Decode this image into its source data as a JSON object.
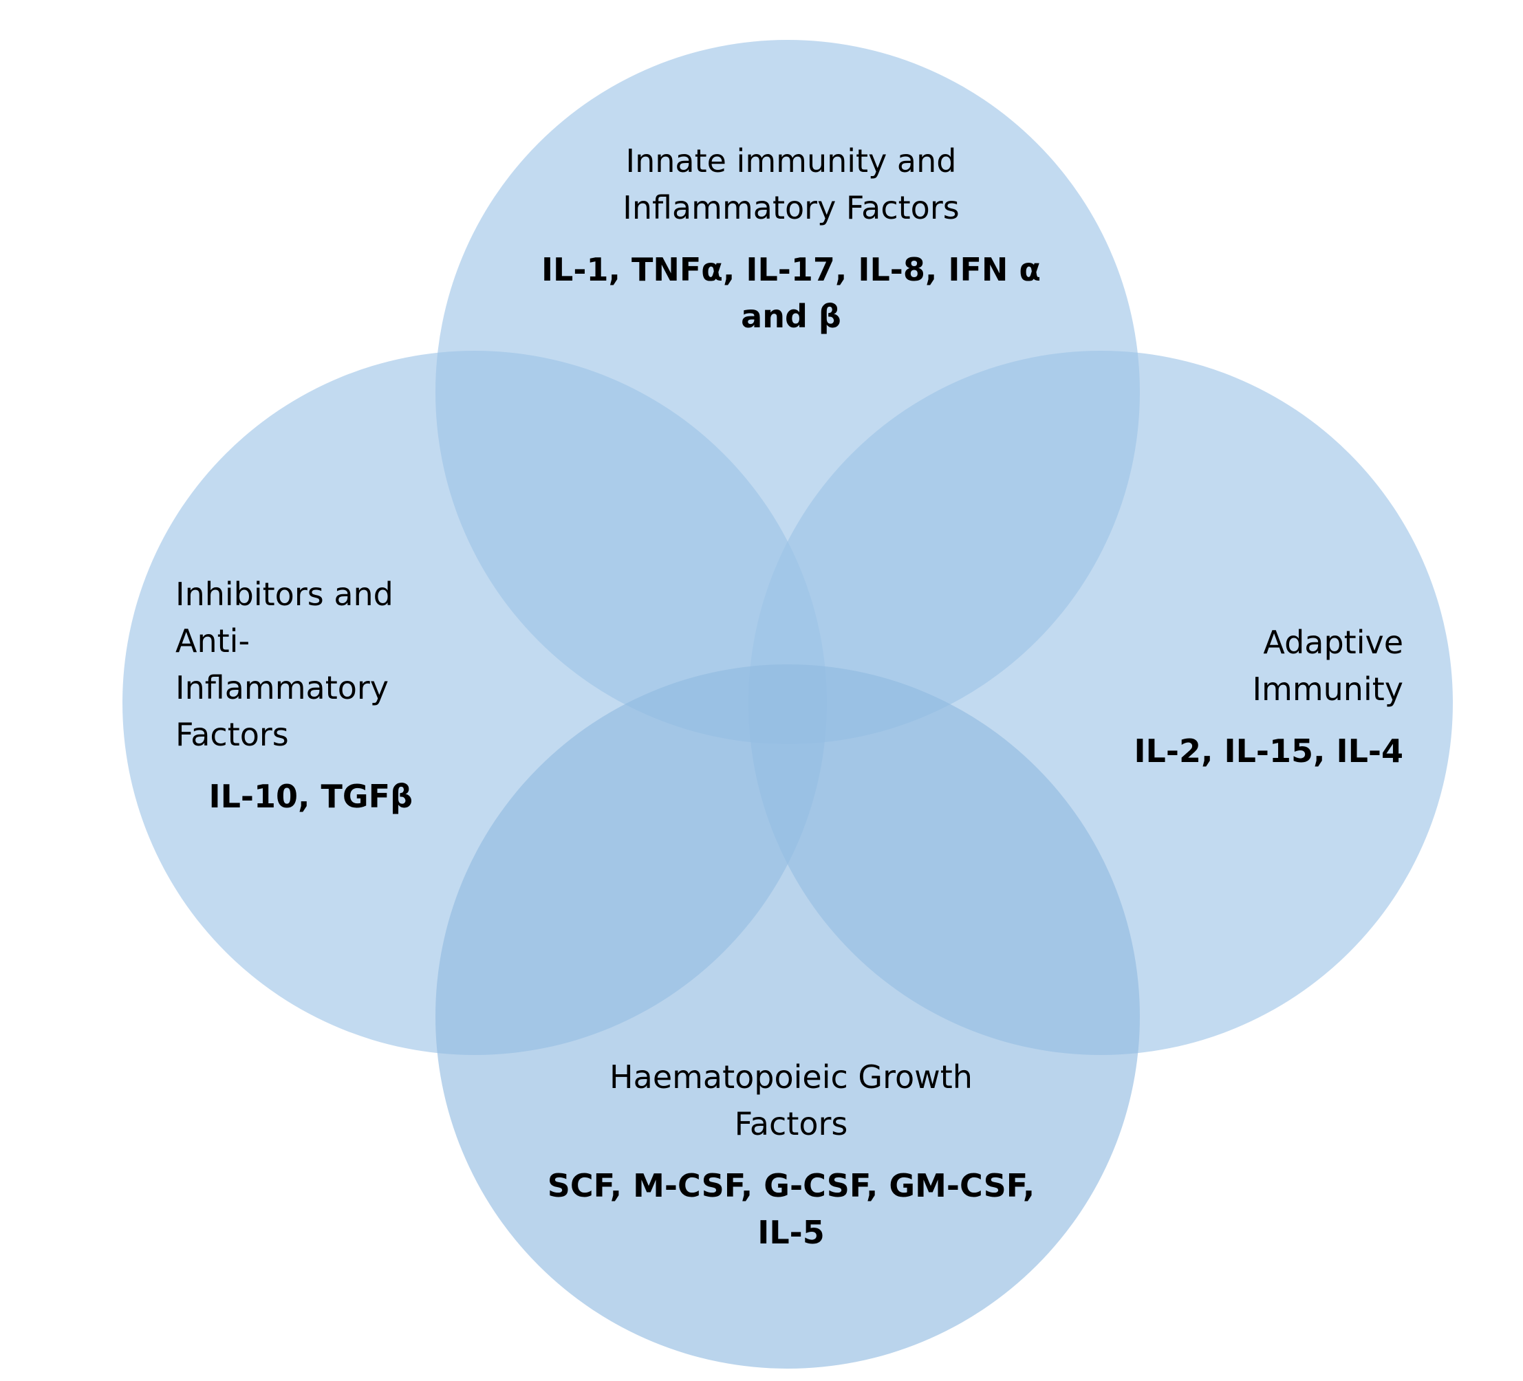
{
  "colors": {
    "circle_fill": "#9dc3e6",
    "circle_fill_bottom": "#8fb9e0",
    "text": "#000000",
    "background": "#ffffff"
  },
  "sets": [
    {
      "id": "top",
      "heading_lines": [
        "Innate immunity and",
        "Inflammatory Factors"
      ],
      "items_lines": [
        "IL-1, TNFα, IL-17, IL-8, IFN α",
        "and β"
      ]
    },
    {
      "id": "left",
      "heading_lines": [
        "Inhibitors and",
        "Anti-",
        "Inflammatory",
        "Factors"
      ],
      "items_lines": [
        "IL-10, TGFβ"
      ]
    },
    {
      "id": "right",
      "heading_lines": [
        "Adaptive",
        "Immunity"
      ],
      "items_lines": [
        "IL-2, IL-15, IL-4"
      ]
    },
    {
      "id": "bottom",
      "heading_lines": [
        "Haematopoieic Growth",
        "Factors"
      ],
      "items_lines": [
        "SCF, M-CSF, G-CSF, GM-CSF,",
        "IL-5"
      ]
    }
  ]
}
